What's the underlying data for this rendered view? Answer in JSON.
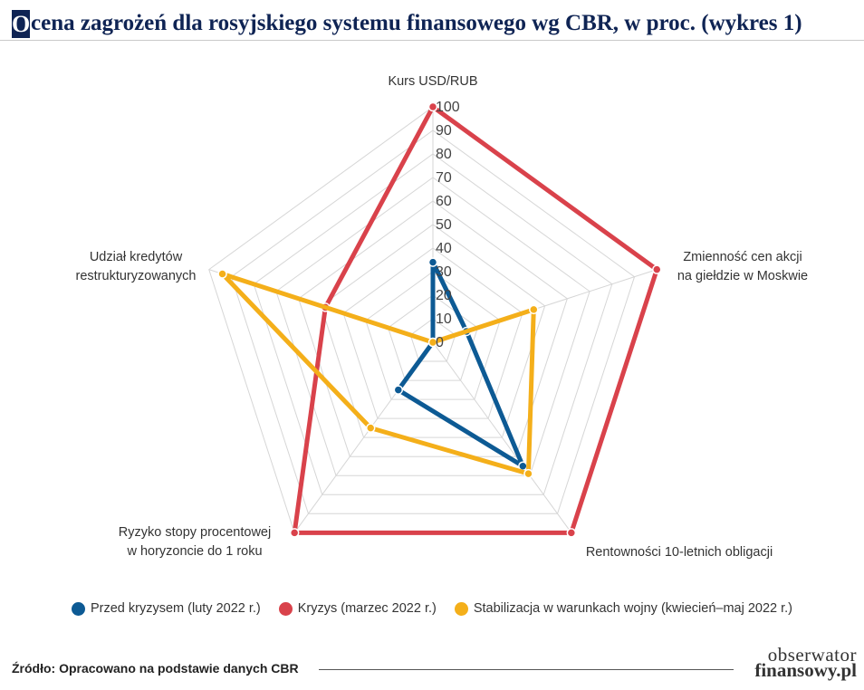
{
  "header": {
    "title_initial": "O",
    "title_rest": "cena zagrożeń dla rosyjskiego systemu finansowego wg CBR, w proc. (wykres 1)"
  },
  "chart_data": {
    "type": "radar",
    "axes": [
      [
        "Kurs USD/RUB"
      ],
      [
        "Zmienność cen akcji",
        "na giełdzie w Moskwie"
      ],
      [
        "Rentowności 10-letnich obligacji"
      ],
      [
        "Ryzyko stopy procentowej",
        "w horyzoncie do 1 roku"
      ],
      [
        "Udział kredytów",
        "restrukturyzowanych"
      ]
    ],
    "rlim": [
      0,
      100
    ],
    "ticks": [
      "0",
      "10",
      "20",
      "30",
      "40",
      "50",
      "60",
      "70",
      "80",
      "90",
      "100"
    ],
    "grid": true,
    "series": [
      {
        "name": "Przed kryzysem (luty 2022 r.)",
        "color": "#0d5a94",
        "values": [
          34,
          15,
          65,
          25,
          0
        ]
      },
      {
        "name": "Kryzys (marzec 2022 r.)",
        "color": "#d9424b",
        "values": [
          100,
          100,
          100,
          100,
          48
        ]
      },
      {
        "name": "Stabilizacja w warunkach wojny (kwiecień–maj 2022 r.)",
        "color": "#f4af1a",
        "values": [
          0,
          45,
          69,
          45,
          94
        ]
      }
    ]
  },
  "footer": {
    "source": "Źródło: Opracowano na podstawie danych CBR",
    "logo_top": "obserwator",
    "logo_bottom": "finansowy.pl"
  }
}
